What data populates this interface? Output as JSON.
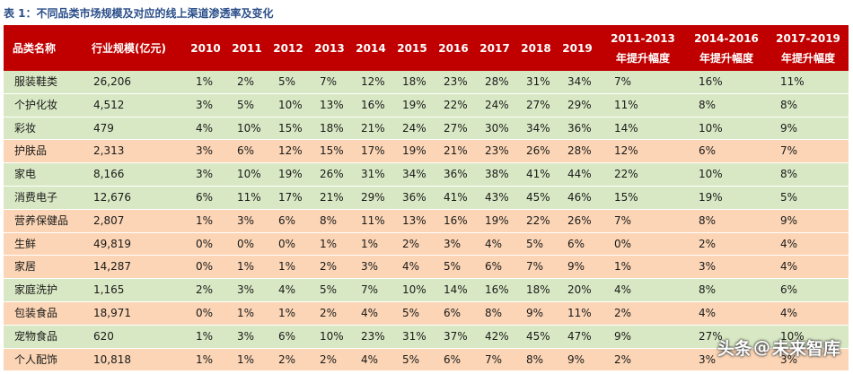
{
  "caption": "表 1：不同品类市场规模及对应的线上渠道渗透率及变化",
  "columns": [
    "品类名称",
    "行业规模(亿元)",
    "2010",
    "2011",
    "2012",
    "2013",
    "2014",
    "2015",
    "2016",
    "2017",
    "2018",
    "2019"
  ],
  "change_headers": [
    {
      "line1": "2011-2013",
      "line2": "年提升幅度"
    },
    {
      "line1": "2014-2016",
      "line2": "年提升幅度"
    },
    {
      "line1": "2017-2019",
      "line2": "年提升幅度"
    }
  ],
  "rows": [
    {
      "cells": [
        "服装鞋类",
        "26,206",
        "1%",
        "2%",
        "5%",
        "7%",
        "12%",
        "18%",
        "23%",
        "28%",
        "31%",
        "34%",
        "7%",
        "16%",
        "11%"
      ],
      "tone": "green"
    },
    {
      "cells": [
        "个护化妆",
        "4,512",
        "3%",
        "5%",
        "10%",
        "13%",
        "16%",
        "19%",
        "22%",
        "24%",
        "27%",
        "29%",
        "11%",
        "8%",
        "8%"
      ],
      "tone": "green"
    },
    {
      "cells": [
        "彩妆",
        "479",
        "4%",
        "10%",
        "15%",
        "18%",
        "21%",
        "24%",
        "27%",
        "30%",
        "34%",
        "36%",
        "14%",
        "10%",
        "9%"
      ],
      "tone": "green"
    },
    {
      "cells": [
        "护肤品",
        "2,313",
        "3%",
        "6%",
        "12%",
        "15%",
        "17%",
        "19%",
        "21%",
        "23%",
        "26%",
        "28%",
        "12%",
        "6%",
        "7%"
      ],
      "tone": "peach"
    },
    {
      "cells": [
        "家电",
        "8,166",
        "3%",
        "10%",
        "19%",
        "26%",
        "31%",
        "34%",
        "36%",
        "38%",
        "41%",
        "44%",
        "22%",
        "10%",
        "8%"
      ],
      "tone": "green"
    },
    {
      "cells": [
        "消费电子",
        "12,676",
        "6%",
        "11%",
        "17%",
        "21%",
        "29%",
        "36%",
        "41%",
        "43%",
        "45%",
        "46%",
        "15%",
        "19%",
        "5%"
      ],
      "tone": "green"
    },
    {
      "cells": [
        "营养保健品",
        "2,807",
        "1%",
        "3%",
        "6%",
        "8%",
        "11%",
        "13%",
        "16%",
        "19%",
        "22%",
        "26%",
        "7%",
        "8%",
        "9%"
      ],
      "tone": "peach"
    },
    {
      "cells": [
        "生鲜",
        "49,819",
        "0%",
        "0%",
        "0%",
        "1%",
        "1%",
        "2%",
        "3%",
        "4%",
        "5%",
        "6%",
        "0%",
        "2%",
        "4%"
      ],
      "tone": "peach"
    },
    {
      "cells": [
        "家居",
        "14,287",
        "0%",
        "1%",
        "1%",
        "2%",
        "3%",
        "4%",
        "5%",
        "6%",
        "7%",
        "9%",
        "1%",
        "3%",
        "4%"
      ],
      "tone": "peach"
    },
    {
      "cells": [
        "家庭洗护",
        "1,165",
        "2%",
        "3%",
        "4%",
        "5%",
        "7%",
        "10%",
        "14%",
        "16%",
        "18%",
        "20%",
        "4%",
        "8%",
        "6%"
      ],
      "tone": "green"
    },
    {
      "cells": [
        "包装食品",
        "18,971",
        "0%",
        "1%",
        "1%",
        "2%",
        "4%",
        "5%",
        "6%",
        "8%",
        "9%",
        "11%",
        "2%",
        "4%",
        "4%"
      ],
      "tone": "peach"
    },
    {
      "cells": [
        "宠物食品",
        "620",
        "1%",
        "3%",
        "6%",
        "10%",
        "23%",
        "31%",
        "37%",
        "42%",
        "45%",
        "47%",
        "9%",
        "27%",
        "10%"
      ],
      "tone": "green"
    },
    {
      "cells": [
        "个人配饰",
        "10,818",
        "1%",
        "1%",
        "2%",
        "2%",
        "4%",
        "5%",
        "6%",
        "7%",
        "8%",
        "9%",
        "2%",
        "3%",
        "3%"
      ],
      "tone": "peach"
    }
  ],
  "watermark": {
    "source": "头条",
    "at": "@",
    "name": "未来智库"
  }
}
